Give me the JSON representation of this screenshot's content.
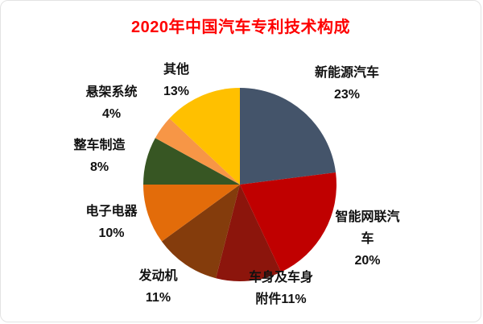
{
  "title": "2020年中国汽车专利技术构成",
  "chart_data": {
    "type": "pie",
    "title": "2020年中国汽车专利技术构成",
    "unit": "%",
    "start_angle_deg": 0,
    "direction": "clockwise",
    "legend": "none",
    "labels_position": "outside",
    "segments": [
      {
        "label": "新能源汽车",
        "value": 23,
        "pct_label": "23%",
        "color": "#44546A"
      },
      {
        "label": "智能网联汽车",
        "value": 20,
        "pct_label": "20%",
        "color": "#C00000"
      },
      {
        "label": "车身及车身附件",
        "value": 11,
        "pct_label": "11%",
        "color": "#8C150C"
      },
      {
        "label": "发动机",
        "value": 11,
        "pct_label": "11%",
        "color": "#843C0C"
      },
      {
        "label": "电子电器",
        "value": 10,
        "pct_label": "10%",
        "color": "#E36C0A"
      },
      {
        "label": "整车制造",
        "value": 8,
        "pct_label": "8%",
        "color": "#375623"
      },
      {
        "label": "悬架系统",
        "value": 4,
        "pct_label": "4%",
        "color": "#F79646"
      },
      {
        "label": "其他",
        "value": 13,
        "pct_label": "13%",
        "color": "#FFC000"
      }
    ]
  },
  "callouts": {
    "new_energy": {
      "lines": [
        "新能源汽车",
        "23%"
      ]
    },
    "intelligent_connected": {
      "lines": [
        "智能网联汽",
        "车",
        "20%"
      ]
    },
    "body_accessories": {
      "lines": [
        "车身及车身",
        "附件11%"
      ]
    },
    "engine": {
      "lines": [
        "发动机",
        "11%"
      ]
    },
    "electronics": {
      "lines": [
        "电子电器",
        "10%"
      ]
    },
    "vehicle_manufacturing": {
      "lines": [
        "整车制造",
        "8%"
      ]
    },
    "suspension": {
      "lines": [
        "悬架系统",
        "4%"
      ]
    },
    "others": {
      "lines": [
        "其他",
        "13%"
      ]
    }
  }
}
